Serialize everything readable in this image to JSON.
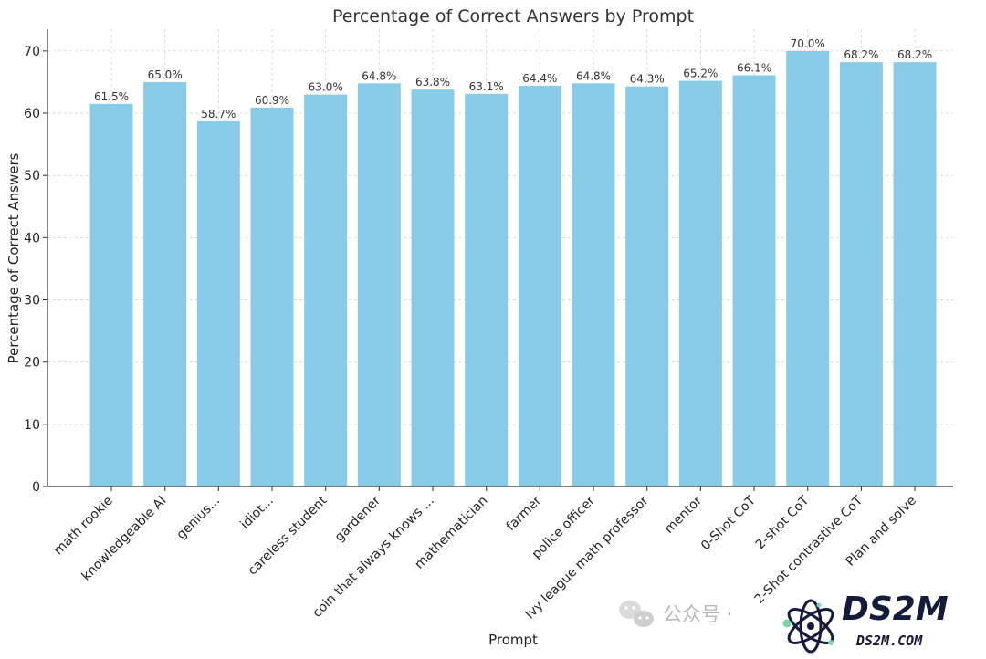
{
  "chart_data": {
    "type": "bar",
    "title": "Percentage of Correct Answers by Prompt",
    "xlabel": "Prompt",
    "ylabel": "Percentage of Correct Answers",
    "ylim": [
      0,
      73.5
    ],
    "yticks": [
      0,
      10,
      20,
      30,
      40,
      50,
      60,
      70
    ],
    "grid": true,
    "bar_color": "#89cce8",
    "categories": [
      "math rookie",
      "knowledgeable AI",
      "genius...",
      "idiot...",
      "careless student",
      "gardener",
      "coin that always knows ...",
      "mathematician",
      "farmer",
      "police officer",
      "Ivy league math professor",
      "mentor",
      "0-Shot CoT",
      "2-shot CoT",
      "2-Shot contrastive CoT",
      "Plan and solve"
    ],
    "values": [
      61.5,
      65.0,
      58.7,
      60.9,
      63.0,
      64.8,
      63.8,
      63.1,
      64.4,
      64.8,
      64.3,
      65.2,
      66.1,
      70.0,
      68.2,
      68.2
    ],
    "value_labels": [
      "61.5%",
      "65.0%",
      "58.7%",
      "60.9%",
      "63.0%",
      "64.8%",
      "63.8%",
      "63.1%",
      "64.4%",
      "64.8%",
      "64.3%",
      "65.2%",
      "66.1%",
      "70.0%",
      "68.2%",
      "68.2%"
    ]
  },
  "watermark": {
    "channel_text": "公众号 ·",
    "brand_name": "DS2M",
    "brand_domain": "DS2M.COM",
    "brand_color": "#151b3a",
    "accent_color": "#7ad8a8"
  }
}
